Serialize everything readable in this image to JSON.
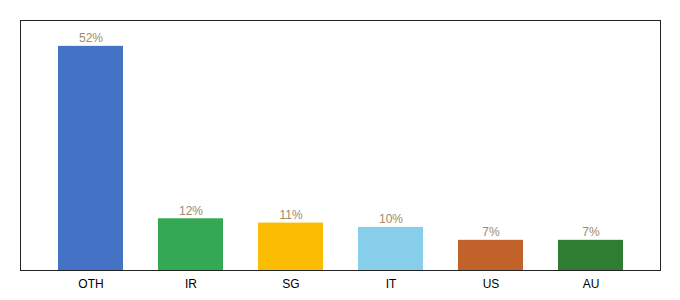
{
  "chart_data": {
    "type": "bar",
    "categories": [
      "OTH",
      "IR",
      "SG",
      "IT",
      "US",
      "AU"
    ],
    "values": [
      52,
      12,
      11,
      10,
      7,
      7
    ],
    "value_labels": [
      "52%",
      "12%",
      "11%",
      "10%",
      "7%",
      "7%"
    ],
    "colors": [
      "#4472C4",
      "#34A853",
      "#FBBC04",
      "#87CEEB",
      "#C0622A",
      "#2E7D32"
    ],
    "ylim": [
      0,
      58
    ],
    "data_labels": true,
    "tick_labels": "x",
    "grid": false
  }
}
